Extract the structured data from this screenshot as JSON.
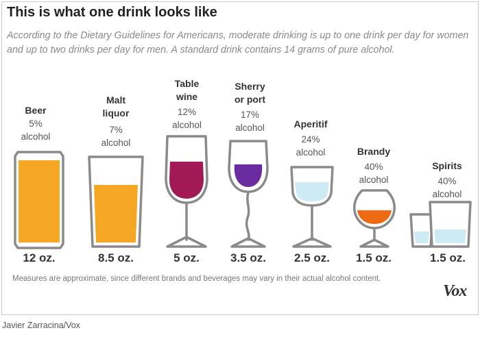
{
  "title": "This is what one drink looks like",
  "subtitle": "According to the Dietary Guidelines for Americans, moderate drinking is up to one drink per day for women and up to two drinks per day for men. A standard drink contains 14 grams of pure alcohol.",
  "drinks": [
    {
      "name": "Beer",
      "percent": "5%",
      "alcohol": "alcohol",
      "volume": "12 oz.",
      "color": "#f5a623"
    },
    {
      "name": "Malt liquor",
      "percent": "7%",
      "alcohol": "alcohol",
      "volume": "8.5 oz.",
      "color": "#f5a623"
    },
    {
      "name": "Table wine",
      "percent": "12%",
      "alcohol": "alcohol",
      "volume": "5 oz.",
      "color": "#a21a55"
    },
    {
      "name": "Sherry or port",
      "percent": "17%",
      "alcohol": "alcohol",
      "volume": "3.5 oz.",
      "color": "#6a2aa0"
    },
    {
      "name": "Aperitif",
      "percent": "24%",
      "alcohol": "alcohol",
      "volume": "2.5 oz.",
      "color": "#cdebf5"
    },
    {
      "name": "Brandy",
      "percent": "40%",
      "alcohol": "alcohol",
      "volume": "1.5 oz.",
      "color": "#ee6a12"
    },
    {
      "name": "Spirits",
      "percent": "40%",
      "alcohol": "alcohol",
      "volume": "1.5 oz.",
      "color": "#cdebf5"
    }
  ],
  "footnote": "Measures are approximate, since different brands and beverages may vary in their actual alcohol content.",
  "logo": "Vox",
  "credit": "Javier Zarracina/Vox"
}
